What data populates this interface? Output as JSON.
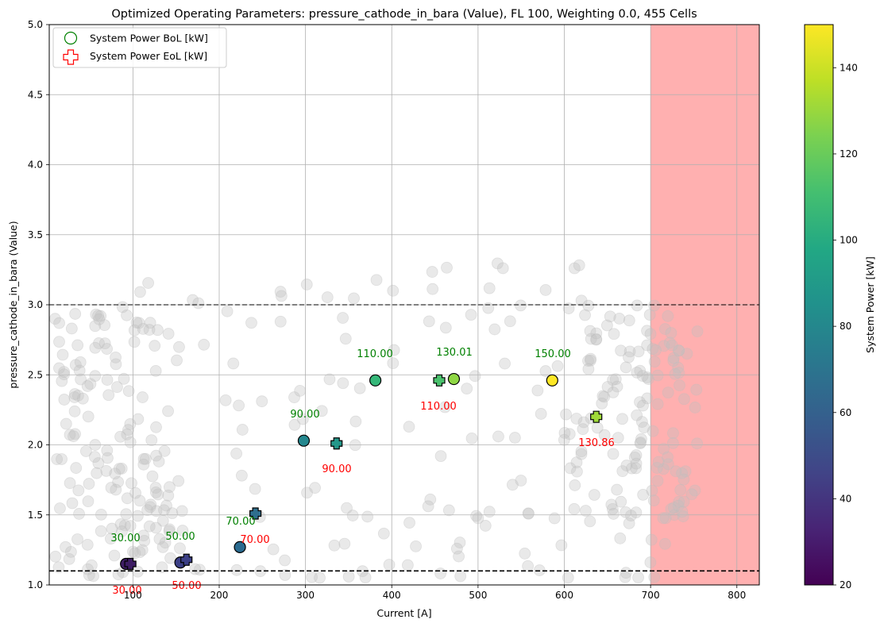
{
  "chart_data": {
    "type": "scatter",
    "title": "Optimized Operating Parameters: pressure_cathode_in_bara (Value), FL 100, Weighting 0.0, 455 Cells",
    "xlabel": "Current [A]",
    "ylabel": "pressure_cathode_in_bara (Value)",
    "xlim": [
      3,
      826
    ],
    "ylim": [
      1.0,
      5.0
    ],
    "x_ticks": [
      100,
      200,
      300,
      400,
      500,
      600,
      700,
      800
    ],
    "y_ticks": [
      1.0,
      1.5,
      2.0,
      2.5,
      3.0,
      3.5,
      4.0,
      4.5,
      5.0
    ],
    "x_tick_labels": [
      "100",
      "200",
      "300",
      "400",
      "500",
      "600",
      "700",
      "800"
    ],
    "y_tick_labels": [
      "1.0",
      "1.5",
      "2.0",
      "2.5",
      "3.0",
      "3.5",
      "4.0",
      "4.5",
      "5.0"
    ],
    "grid": true,
    "legend_position": "top-left",
    "legend": [
      {
        "label": "System Power BoL [kW]",
        "marker": "circle",
        "color": "#008000"
      },
      {
        "label": "System Power EoL [kW]",
        "marker": "plus",
        "color": "#ff0000"
      }
    ],
    "reference_lines": [
      {
        "y": 3.0,
        "style": "dashed"
      },
      {
        "y": 1.1,
        "style": "dashed"
      }
    ],
    "shaded_region": {
      "x_from": 700,
      "x_to": 826,
      "color": "#ffb0b0"
    },
    "colorbar": {
      "label": "System Power [kW]",
      "min": 20,
      "max": 150,
      "ticks": [
        "20",
        "40",
        "60",
        "80",
        "100",
        "120",
        "140"
      ]
    },
    "series": [
      {
        "name": "System Power BoL [kW]",
        "marker": "circle",
        "points": [
          {
            "x": 92,
            "y": 1.15,
            "power": 30,
            "label": "30.00",
            "color": "#3d1c63"
          },
          {
            "x": 155,
            "y": 1.16,
            "power": 50,
            "label": "50.00",
            "color": "#3b3f85"
          },
          {
            "x": 224,
            "y": 1.27,
            "power": 70,
            "label": "70.00",
            "color": "#2a6a8f"
          },
          {
            "x": 298,
            "y": 2.03,
            "power": 90,
            "label": "90.00",
            "color": "#24878e"
          },
          {
            "x": 381,
            "y": 2.46,
            "power": 110,
            "label": "110.00",
            "color": "#35b779"
          },
          {
            "x": 472,
            "y": 2.47,
            "power": 130.01,
            "label": "130.01",
            "color": "#8fd744"
          },
          {
            "x": 586,
            "y": 2.46,
            "power": 150,
            "label": "150.00",
            "color": "#fde725"
          }
        ]
      },
      {
        "name": "System Power EoL [kW]",
        "marker": "plus",
        "points": [
          {
            "x": 97,
            "y": 1.15,
            "power": 30,
            "label": "30.00",
            "color": "#3d1c63"
          },
          {
            "x": 162,
            "y": 1.18,
            "power": 50,
            "label": "50.00",
            "color": "#3b3f85"
          },
          {
            "x": 242,
            "y": 1.51,
            "power": 70,
            "label": "70.00",
            "color": "#2f6f8e"
          },
          {
            "x": 336,
            "y": 2.01,
            "power": 90,
            "label": "90.00",
            "color": "#24978a"
          },
          {
            "x": 455,
            "y": 2.46,
            "power": 110,
            "label": "110.00",
            "color": "#4ac16d"
          },
          {
            "x": 637,
            "y": 2.2,
            "power": 130.86,
            "label": "130.86",
            "color": "#a0da39"
          }
        ]
      }
    ]
  }
}
